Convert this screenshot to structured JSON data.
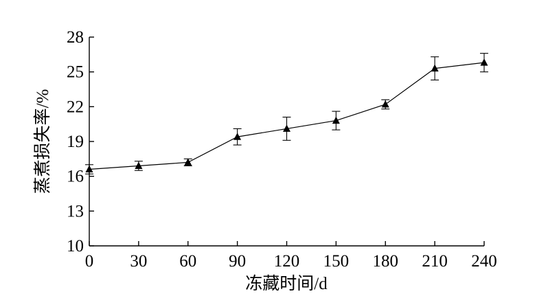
{
  "chart_data": {
    "type": "line",
    "xlabel": "冻藏时间/d",
    "ylabel": "蒸煮损失率/%",
    "x": [
      0,
      30,
      60,
      90,
      120,
      150,
      180,
      210,
      240
    ],
    "xticks": [
      "0",
      "30",
      "60",
      "90",
      "120",
      "150",
      "180",
      "210",
      "240"
    ],
    "yticks": [
      "10",
      "13",
      "16",
      "19",
      "22",
      "25",
      "28"
    ],
    "xlim": [
      0,
      240
    ],
    "ylim": [
      10,
      28
    ],
    "grid": false,
    "series": [
      {
        "marker": "triangle",
        "color": "#000000",
        "values": [
          16.6,
          16.9,
          17.2,
          19.4,
          20.1,
          20.8,
          22.2,
          25.3,
          25.8
        ],
        "error": [
          0.4,
          0.4,
          0.3,
          0.7,
          1.0,
          0.8,
          0.4,
          1.0,
          0.8
        ]
      }
    ]
  }
}
